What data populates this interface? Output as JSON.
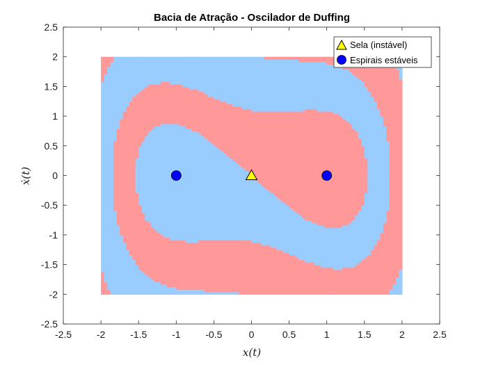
{
  "chart_data": {
    "type": "heatmap",
    "title": "Bacia de Atração - Oscilador de Duffing",
    "xlabel": "x(t)",
    "ylabel": "ẋ(t)",
    "xlim": [
      -2.5,
      2.5
    ],
    "ylim": [
      -2.5,
      2.5
    ],
    "grid": false,
    "legend_position": "top-right",
    "domain": {
      "x": [
        -2,
        2
      ],
      "y": [
        -2,
        2
      ]
    },
    "x_ticks": [
      "-2.5",
      "-2",
      "-1.5",
      "-1",
      "-0.5",
      "0",
      "0.5",
      "1",
      "1.5",
      "2",
      "2.5"
    ],
    "y_ticks": [
      "2.5",
      "2",
      "1.5",
      "1",
      "0.5",
      "0",
      "-0.5",
      "-1",
      "-1.5",
      "-2",
      "-2.5"
    ],
    "basin_colors": {
      "left_spiral": "#99ccff",
      "right_spiral": "#ff9999"
    },
    "series": [
      {
        "name": "Sela (instável)",
        "marker": "triangle",
        "color": "#ffff00",
        "points": [
          [
            0,
            0
          ]
        ]
      },
      {
        "name": "Espirais estáveis",
        "marker": "circle",
        "color": "#0000ff",
        "points": [
          [
            -1,
            0
          ],
          [
            1,
            0
          ]
        ]
      }
    ]
  }
}
